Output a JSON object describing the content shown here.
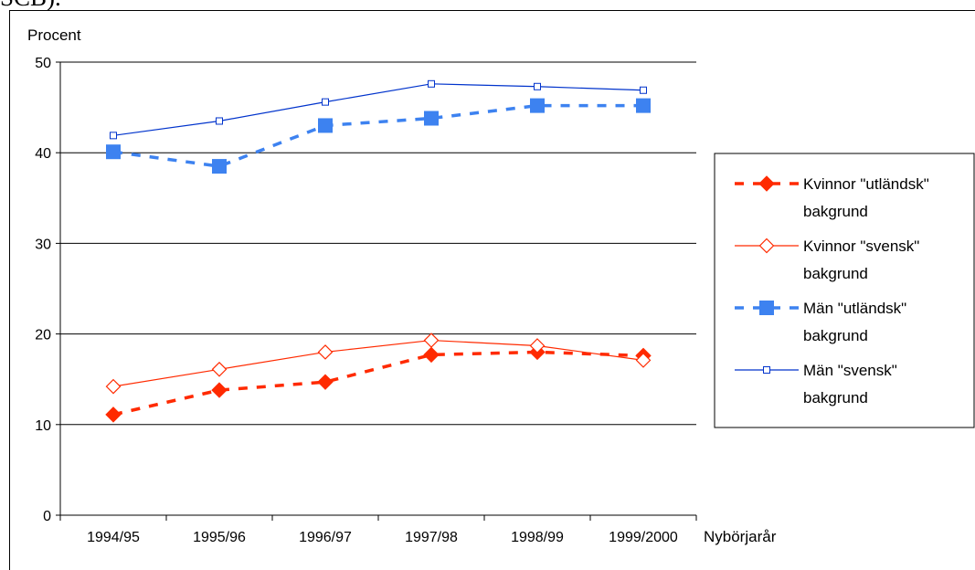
{
  "caption_fragment": "SCB).",
  "chart_data": {
    "type": "line",
    "ylabel": "Procent",
    "xlabel": "Nybörjarår",
    "ylim": [
      0,
      50
    ],
    "yticks": [
      0,
      10,
      20,
      30,
      40,
      50
    ],
    "grid": true,
    "legend_position": "right",
    "categories": [
      "1994/95",
      "1995/96",
      "1996/97",
      "1997/98",
      "1998/99",
      "1999/2000"
    ],
    "series": [
      {
        "name": "Kvinnor \"utländsk\" bakgrund",
        "name_lines": [
          "Kvinnor \"utländsk\"",
          "bakgrund"
        ],
        "values": [
          11.1,
          13.8,
          14.7,
          17.7,
          18.0,
          17.6
        ],
        "color": "#ff2a00",
        "line_style": "dotted-thick",
        "marker": "diamond-filled"
      },
      {
        "name": "Kvinnor \"svensk\" bakgrund",
        "name_lines": [
          "Kvinnor \"svensk\"",
          "bakgrund"
        ],
        "values": [
          14.2,
          16.1,
          18.0,
          19.3,
          18.7,
          17.1
        ],
        "color": "#ff2a00",
        "line_style": "solid-thin",
        "marker": "diamond-open"
      },
      {
        "name": "Män \"utländsk\" bakgrund",
        "name_lines": [
          "Män \"utländsk\"",
          "bakgrund"
        ],
        "values": [
          40.1,
          38.5,
          43.0,
          43.8,
          45.2,
          45.2
        ],
        "color": "#3d82f0",
        "line_style": "dotted-thick",
        "marker": "square-filled"
      },
      {
        "name": "Män \"svensk\" bakgrund",
        "name_lines": [
          "Män \"svensk\"",
          "bakgrund"
        ],
        "values": [
          41.9,
          43.5,
          45.6,
          47.6,
          47.3,
          46.9
        ],
        "color": "#0033cc",
        "line_style": "solid-thin",
        "marker": "square-open"
      }
    ]
  }
}
